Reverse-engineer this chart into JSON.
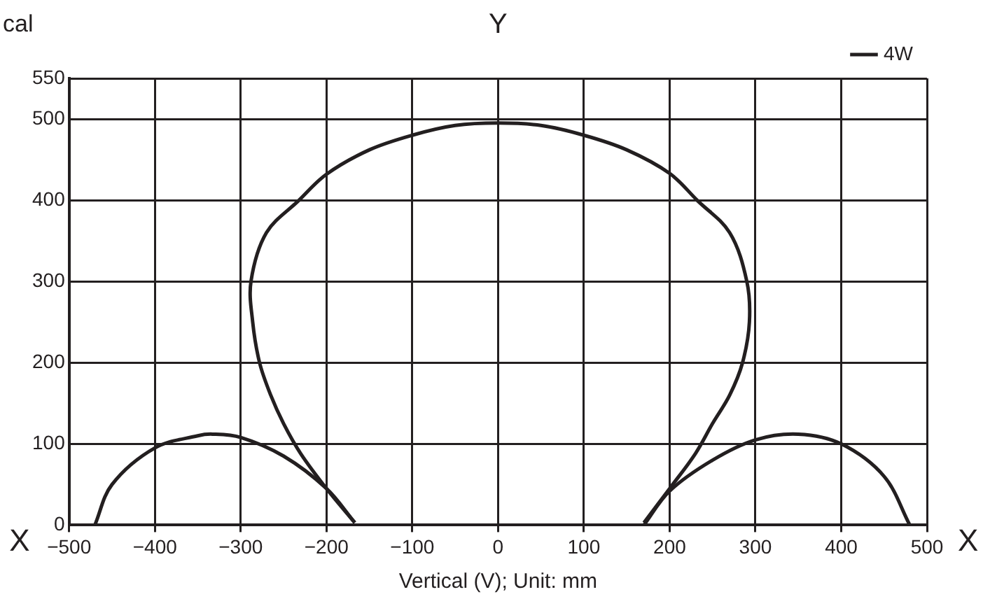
{
  "chart_data": {
    "type": "line",
    "ylabel": "Y",
    "xlabel": "Vertical (V); Unit: mm",
    "annotations": [
      "cal",
      "X",
      "X"
    ],
    "xlim": [
      -500,
      500
    ],
    "xticks": [
      {
        "value": -500,
        "label": "−500"
      },
      {
        "value": -400,
        "label": "−400"
      },
      {
        "value": -300,
        "label": "−300"
      },
      {
        "value": -200,
        "label": "−200"
      },
      {
        "value": -100,
        "label": "−100"
      },
      0,
      100,
      200,
      300,
      400,
      500
    ],
    "ylim": [
      0,
      550
    ],
    "yticks": [
      0,
      100,
      200,
      300,
      400,
      500,
      550
    ],
    "grid": true,
    "legend": "top right",
    "marker": "none",
    "line_style": "solid",
    "series": [
      {
        "name": "4W",
        "color": "#231f20",
        "x": [
          -167,
          -200,
          -230,
          -250,
          -265,
          -278,
          -286,
          -288,
          -270,
          -232,
          -200,
          -150,
          -100,
          -50,
          0,
          50,
          100,
          150,
          200,
          232,
          270,
          290,
          293,
          285,
          270,
          250,
          230,
          200,
          170
        ],
        "values": [
          3,
          45,
          88,
          125,
          160,
          200,
          250,
          300,
          360,
          400,
          432,
          462,
          480,
          492,
          495,
          492,
          480,
          462,
          433,
          400,
          360,
          300,
          250,
          200,
          160,
          125,
          88,
          45,
          3
        ]
      },
      {
        "color": "#231f20",
        "x": [
          -470,
          -450,
          -400,
          -350,
          -333,
          -300,
          -250,
          -200,
          -167
        ],
        "values": [
          0,
          50,
          95,
          110,
          112,
          108,
          85,
          45,
          3
        ]
      },
      {
        "color": "#231f20",
        "x": [
          170,
          200,
          250,
          300,
          350,
          400,
          450,
          480
        ],
        "values": [
          0,
          42,
          80,
          105,
          112,
          100,
          60,
          0
        ]
      }
    ]
  }
}
